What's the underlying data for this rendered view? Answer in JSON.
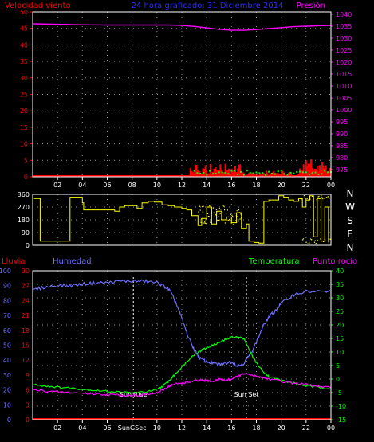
{
  "colors": {
    "background": "#000000",
    "frame": "#ffffff",
    "grid": "#8a8a8a",
    "wind": "#ff0000",
    "gust": "#00ff00",
    "pressure": "#ff00ff",
    "title": "#2a2aff",
    "direction": "#ffff00",
    "rain": "#ff0000",
    "humidity": "#6f6fff",
    "temperature": "#00ff00",
    "dewpoint": "#ff00ff",
    "sun": "#ffffff"
  },
  "chart_data": [
    {
      "type": "line",
      "name": "top",
      "title": "24 hora graficado: 31 Diciembre 2014",
      "left_label": "Velocidad viento",
      "right_label": "Presión",
      "x_ticks": [
        "02",
        "04",
        "06",
        "08",
        "10",
        "12",
        "14",
        "16",
        "18",
        "20",
        "22",
        "00"
      ],
      "x_range": [
        0,
        24
      ],
      "left_axis": {
        "range": [
          0,
          50
        ],
        "ticks": [
          "0",
          "5",
          "10",
          "15",
          "20",
          "25",
          "30",
          "35",
          "40",
          "45",
          "50"
        ]
      },
      "right_axis": {
        "range": [
          972,
          1041
        ],
        "ticks": [
          "975",
          "980",
          "985",
          "990",
          "995",
          "1000",
          "1005",
          "1010",
          "1015",
          "1020",
          "1025",
          "1030",
          "1035",
          "1040"
        ]
      },
      "series": [
        {
          "axis": "right",
          "x": [
            0,
            2,
            4,
            6,
            8,
            10,
            11,
            12,
            13,
            14,
            15,
            16,
            17,
            18,
            19,
            20,
            21,
            22,
            23,
            24
          ],
          "y": [
            1036,
            1035.8,
            1035.6,
            1035.5,
            1035.5,
            1035.5,
            1035.5,
            1035.3,
            1034.9,
            1034.3,
            1033.7,
            1033.3,
            1033.3,
            1033.6,
            1034.0,
            1034.4,
            1034.8,
            1035.0,
            1035.2,
            1035.3
          ]
        }
      ],
      "wind_bars": {
        "x_start": 0,
        "x_end": 24,
        "step": 0.1,
        "calm_until": 12.6
      },
      "gust_dots": {
        "x_start": 13,
        "x_end": 24,
        "step": 0.25
      }
    },
    {
      "type": "scatter",
      "name": "direction",
      "y_range": [
        0,
        360
      ],
      "left_ticks": [
        "0",
        "90",
        "180",
        "270",
        "360"
      ],
      "right_ticks": [
        "N",
        "W",
        "S",
        "E",
        "N"
      ],
      "x": [
        0.1,
        0.6,
        1.4,
        2.0,
        2.6,
        3.0,
        3.5,
        4.0,
        4.1,
        5.0,
        6.0,
        6.6,
        7.0,
        7.4,
        7.8,
        8.4,
        8.8,
        9.3,
        9.8,
        10.4,
        10.9,
        11.4,
        12.0,
        12.4,
        12.8,
        13.3,
        13.6,
        14.0,
        14.4,
        14.8,
        15.2,
        15.6,
        16.0,
        16.4,
        16.8,
        17.2,
        17.4,
        17.8,
        18.2,
        18.6,
        19.0,
        19.4,
        19.8,
        20.2,
        20.6,
        21.0,
        21.4,
        21.7,
        22.0,
        22.3,
        22.6,
        22.9,
        23.2,
        23.5,
        23.8
      ],
      "y": [
        330,
        30,
        30,
        30,
        30,
        340,
        340,
        300,
        250,
        250,
        250,
        240,
        270,
        280,
        280,
        260,
        300,
        310,
        305,
        285,
        280,
        270,
        260,
        250,
        210,
        140,
        190,
        270,
        150,
        240,
        180,
        200,
        160,
        230,
        120,
        150,
        30,
        20,
        15,
        310,
        320,
        320,
        350,
        340,
        320,
        310,
        330,
        270,
        320,
        350,
        60,
        330,
        30,
        270,
        20
      ]
    },
    {
      "type": "line",
      "name": "bottom",
      "left_label_1": "Lluvia",
      "left_label_2": "Humedad",
      "right_label_1": "Temperatura",
      "right_label_2": "Punto rocío",
      "x_ticks": [
        "02",
        "04",
        "06",
        "SunGSec",
        "10",
        "12",
        "14",
        "16",
        "18",
        "20",
        "22",
        "00"
      ],
      "x_range": [
        0,
        24
      ],
      "humidity_axis": {
        "range": [
          0,
          100
        ],
        "ticks": [
          "0",
          "10",
          "20",
          "30",
          "40",
          "50",
          "60",
          "70",
          "80",
          "90",
          "100"
        ]
      },
      "rain_axis": {
        "range": [
          0,
          30
        ],
        "ticks": [
          "0",
          "3",
          "6",
          "9",
          "12",
          "15",
          "18",
          "21",
          "24",
          "27",
          "30"
        ]
      },
      "temp_axis": {
        "range": [
          -15,
          40
        ],
        "ticks": [
          "-15",
          "-10",
          "-5",
          "0",
          "5",
          "10",
          "15",
          "20",
          "25",
          "30",
          "35",
          "40"
        ]
      },
      "sunrise": {
        "label": "Sun Rise",
        "x": 8.1
      },
      "sunset": {
        "label": "Sun Set",
        "x": 17.2
      },
      "series": [
        {
          "axis": "humidity",
          "x": [
            0,
            1,
            2,
            3,
            4,
            5,
            6,
            7,
            8,
            9,
            10,
            10.5,
            11,
            11.5,
            12,
            12.5,
            13,
            13.5,
            14,
            14.5,
            15,
            15.5,
            16,
            16.5,
            17,
            17.5,
            18,
            18.5,
            19,
            19.5,
            20,
            21,
            22,
            23,
            24
          ],
          "y": [
            87,
            89,
            90,
            90,
            91,
            92,
            92,
            93,
            93,
            93,
            92,
            90,
            87,
            79,
            68,
            56,
            47,
            41,
            39,
            38,
            37,
            38,
            39,
            36,
            38,
            44,
            52,
            62,
            69,
            73,
            78,
            84,
            86,
            86,
            86
          ]
        },
        {
          "axis": "temp",
          "x": [
            0,
            1,
            2,
            3,
            4,
            5,
            6,
            7,
            8,
            9,
            10,
            10.5,
            11,
            11.5,
            12,
            12.5,
            13,
            13.5,
            14,
            14.5,
            15,
            15.5,
            16,
            16.5,
            17,
            17.5,
            18,
            18.5,
            19,
            20,
            21,
            22,
            23,
            24
          ],
          "y": [
            -2,
            -2.5,
            -3,
            -3.3,
            -3.7,
            -4.2,
            -4.5,
            -4.8,
            -5.1,
            -4.8,
            -4,
            -2.5,
            -0.5,
            2,
            4.5,
            7,
            9,
            10.5,
            11.5,
            12.5,
            13.5,
            14.5,
            15.5,
            15.5,
            15,
            10,
            6,
            3,
            1,
            -0.5,
            -1.5,
            -2.5,
            -3,
            -3.5
          ]
        },
        {
          "axis": "temp",
          "x": [
            0,
            1,
            2,
            3,
            4,
            5,
            6,
            7,
            8,
            9,
            10,
            10.5,
            11,
            11.5,
            12,
            12.5,
            13,
            13.5,
            14,
            14.5,
            15,
            15.5,
            16,
            16.5,
            17,
            17.5,
            18,
            18.5,
            19,
            20,
            21,
            22,
            23,
            24
          ],
          "y": [
            -4,
            -4.4,
            -4.8,
            -5,
            -5.2,
            -5.5,
            -5.7,
            -5.9,
            -6,
            -5.8,
            -5.2,
            -4,
            -2.5,
            -1.8,
            -1.5,
            -1.2,
            -0.8,
            -0.5,
            -0.5,
            -1,
            0,
            -0.5,
            0,
            1,
            2,
            1.5,
            1,
            0.5,
            0,
            -0.8,
            -1.5,
            -2,
            -2.8,
            -3.2
          ]
        },
        {
          "axis": "rain",
          "x": [
            0,
            24
          ],
          "y": [
            0,
            0
          ]
        }
      ]
    }
  ]
}
